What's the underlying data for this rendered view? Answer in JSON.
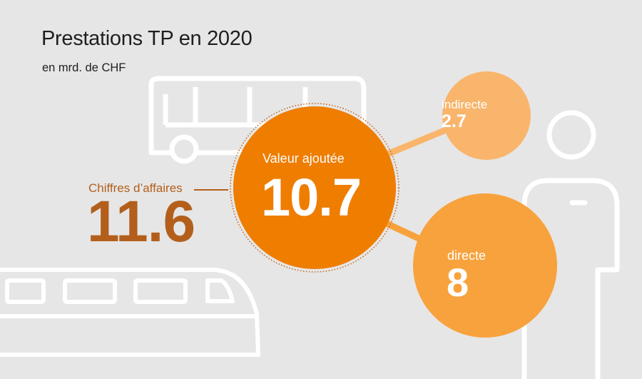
{
  "title": "Prestations TP en 2020",
  "subtitle": "en mrd. de CHF",
  "colors": {
    "background": "#e6e6e6",
    "outline": "#ffffff",
    "turnover": "#b35f1b",
    "main_circle": "#ef7d00",
    "direct_circle": "#f8a23d",
    "indirect_circle": "#f9b56c"
  },
  "icons": [
    "bus-icon",
    "train-icon",
    "person-icon"
  ],
  "chart_data": {
    "type": "bubble",
    "turnover": {
      "label": "Chiffres d’affaires",
      "value": "11.6"
    },
    "bubbles": [
      {
        "label": "Valeur ajoutée",
        "value": "10.7"
      },
      {
        "label": "indirecte",
        "value": "2.7"
      },
      {
        "label": "directe",
        "value": "8"
      }
    ]
  }
}
